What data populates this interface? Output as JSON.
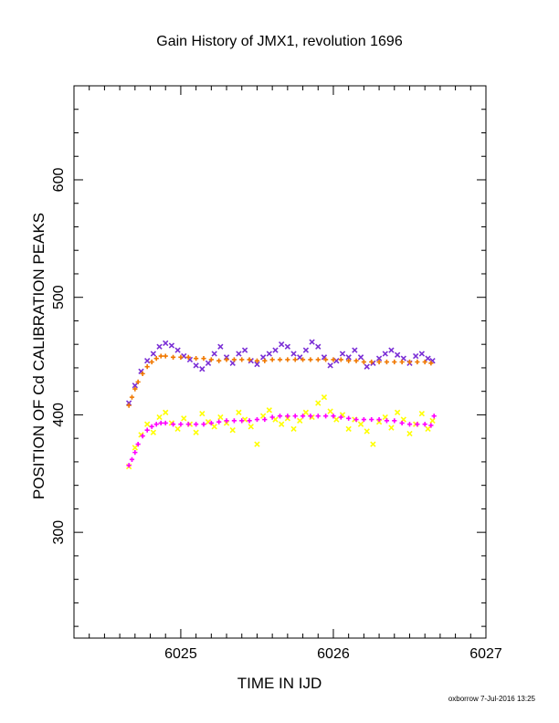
{
  "chart_data": {
    "type": "scatter",
    "title": "Gain History of JMX1, revolution 1696",
    "xlabel": "TIME IN IJD",
    "ylabel": "POSITION OF Cd CALIBRATION PEAKS",
    "xlim": [
      6024.3,
      6027.0
    ],
    "ylim": [
      210,
      680
    ],
    "xticks": [
      6025,
      6026,
      6027
    ],
    "xtick_labels": [
      "6025",
      "6026",
      "6027"
    ],
    "yticks": [
      300,
      400,
      500,
      600
    ],
    "ytick_labels": [
      "300",
      "400",
      "500",
      "600"
    ],
    "grid": false,
    "legend": "none",
    "series": [
      {
        "marker": "x",
        "color": "#7b2fd6",
        "x": [
          6024.66,
          6024.7,
          6024.74,
          6024.78,
          6024.82,
          6024.86,
          6024.9,
          6024.94,
          6024.98,
          6025.02,
          6025.06,
          6025.1,
          6025.14,
          6025.18,
          6025.22,
          6025.26,
          6025.3,
          6025.34,
          6025.38,
          6025.42,
          6025.46,
          6025.5,
          6025.54,
          6025.58,
          6025.62,
          6025.66,
          6025.7,
          6025.74,
          6025.78,
          6025.82,
          6025.86,
          6025.9,
          6025.94,
          6025.98,
          6026.02,
          6026.06,
          6026.1,
          6026.14,
          6026.18,
          6026.22,
          6026.26,
          6026.3,
          6026.34,
          6026.38,
          6026.42,
          6026.46,
          6026.5,
          6026.54,
          6026.58,
          6026.62,
          6026.65
        ],
        "y": [
          410,
          425,
          437,
          446,
          452,
          458,
          461,
          459,
          455,
          450,
          447,
          442,
          439,
          444,
          452,
          458,
          449,
          444,
          452,
          455,
          446,
          443,
          449,
          452,
          455,
          460,
          458,
          452,
          449,
          455,
          462,
          458,
          449,
          442,
          446,
          452,
          449,
          455,
          449,
          441,
          444,
          448,
          452,
          455,
          451,
          448,
          444,
          450,
          452,
          448,
          446
        ]
      },
      {
        "marker": "+",
        "color": "#f07800",
        "x": [
          6024.66,
          6024.68,
          6024.7,
          6024.72,
          6024.75,
          6024.78,
          6024.81,
          6024.84,
          6024.87,
          6024.9,
          6024.95,
          6025.0,
          6025.05,
          6025.1,
          6025.15,
          6025.2,
          6025.25,
          6025.3,
          6025.35,
          6025.4,
          6025.45,
          6025.5,
          6025.55,
          6025.6,
          6025.65,
          6025.7,
          6025.75,
          6025.8,
          6025.85,
          6025.9,
          6025.95,
          6026.0,
          6026.05,
          6026.1,
          6026.15,
          6026.2,
          6026.25,
          6026.3,
          6026.35,
          6026.4,
          6026.45,
          6026.5,
          6026.55,
          6026.6,
          6026.64
        ],
        "y": [
          408,
          415,
          422,
          428,
          435,
          441,
          445,
          448,
          450,
          450,
          449,
          449,
          449,
          448,
          448,
          447,
          446,
          447,
          447,
          447,
          447,
          446,
          446,
          447,
          447,
          447,
          447,
          447,
          447,
          447,
          447,
          447,
          447,
          446,
          446,
          445,
          445,
          445,
          445,
          445,
          445,
          445,
          445,
          445,
          444
        ]
      },
      {
        "marker": "x",
        "color": "#ffff00",
        "x": [
          6024.66,
          6024.7,
          6024.74,
          6024.78,
          6024.82,
          6024.86,
          6024.9,
          6024.94,
          6024.98,
          6025.02,
          6025.06,
          6025.1,
          6025.14,
          6025.18,
          6025.22,
          6025.26,
          6025.3,
          6025.34,
          6025.38,
          6025.42,
          6025.46,
          6025.5,
          6025.54,
          6025.58,
          6025.62,
          6025.66,
          6025.7,
          6025.74,
          6025.78,
          6025.82,
          6025.86,
          6025.9,
          6025.94,
          6025.98,
          6026.02,
          6026.06,
          6026.1,
          6026.14,
          6026.18,
          6026.22,
          6026.26,
          6026.3,
          6026.34,
          6026.38,
          6026.42,
          6026.46,
          6026.5,
          6026.54,
          6026.58,
          6026.62,
          6026.65
        ],
        "y": [
          356,
          372,
          383,
          392,
          385,
          398,
          402,
          393,
          388,
          397,
          392,
          385,
          401,
          394,
          390,
          398,
          393,
          387,
          402,
          396,
          390,
          375,
          399,
          404,
          396,
          392,
          397,
          388,
          395,
          402,
          398,
          410,
          415,
          403,
          396,
          400,
          388,
          396,
          392,
          386,
          375,
          394,
          398,
          389,
          402,
          396,
          384,
          392,
          401,
          388,
          395
        ]
      },
      {
        "marker": "+",
        "color": "#ff00ff",
        "x": [
          6024.66,
          6024.68,
          6024.7,
          6024.72,
          6024.75,
          6024.78,
          6024.81,
          6024.84,
          6024.87,
          6024.9,
          6024.95,
          6025.0,
          6025.05,
          6025.1,
          6025.15,
          6025.2,
          6025.25,
          6025.3,
          6025.35,
          6025.4,
          6025.45,
          6025.5,
          6025.55,
          6025.6,
          6025.65,
          6025.7,
          6025.75,
          6025.8,
          6025.85,
          6025.9,
          6025.95,
          6026.0,
          6026.05,
          6026.1,
          6026.15,
          6026.2,
          6026.25,
          6026.3,
          6026.35,
          6026.4,
          6026.45,
          6026.5,
          6026.55,
          6026.6,
          6026.64,
          6026.66
        ],
        "y": [
          357,
          362,
          368,
          375,
          382,
          387,
          390,
          392,
          393,
          393,
          392,
          392,
          392,
          392,
          392,
          393,
          394,
          395,
          395,
          395,
          395,
          396,
          396,
          398,
          399,
          399,
          399,
          399,
          399,
          399,
          399,
          399,
          398,
          397,
          396,
          396,
          396,
          396,
          395,
          395,
          393,
          392,
          392,
          392,
          391,
          399
        ]
      }
    ]
  },
  "footer": {
    "credit": "oxborrow  7-Jul-2016 13:25"
  }
}
